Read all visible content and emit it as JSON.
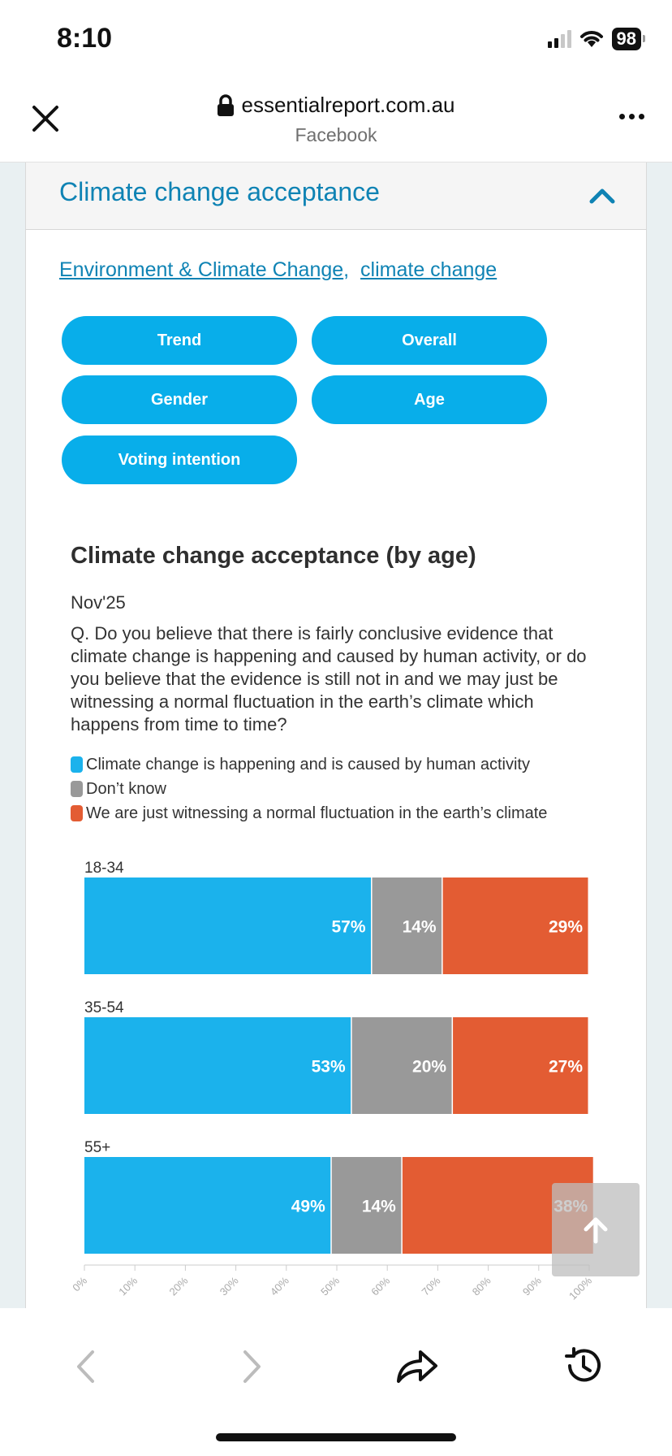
{
  "status": {
    "time": "8:10",
    "battery": "98"
  },
  "browser": {
    "domain": "essentialreport.com.au",
    "source": "Facebook"
  },
  "accordion": {
    "title": "Climate change acceptance"
  },
  "tags": [
    "Environment & Climate Change",
    "climate change"
  ],
  "tag_separator": ",",
  "buttons": {
    "trend": "Trend",
    "overall": "Overall",
    "gender": "Gender",
    "age": "Age",
    "voting": "Voting intention"
  },
  "chart_header": {
    "title": "Climate change acceptance (by age)",
    "date": "Nov'25",
    "question": "Q. Do you believe that there is fairly conclusive evidence that climate change is happening and caused by human activity, or do you believe that the evidence is still not in and we may just be witnessing a normal fluctuation in the earth’s climate which happens from time to time?"
  },
  "chart_data": {
    "type": "bar",
    "orientation": "horizontal",
    "stacked": true,
    "title": "Climate change acceptance (by age)",
    "categories": [
      "18-34",
      "35-54",
      "55+"
    ],
    "series": [
      {
        "name": "Climate change is happening and is caused by human activity",
        "color": "#1bb2ec",
        "values": [
          57,
          53,
          49
        ]
      },
      {
        "name": "Don’t know",
        "color": "#999999",
        "values": [
          14,
          20,
          14
        ]
      },
      {
        "name": "We are just witnessing a normal fluctuation in the earth’s climate",
        "color": "#e35c33",
        "values": [
          29,
          27,
          38
        ]
      }
    ],
    "xlim": [
      0,
      100
    ],
    "xticks": [
      "0%",
      "10%",
      "20%",
      "30%",
      "40%",
      "50%",
      "60%",
      "70%",
      "80%",
      "90%",
      "100%"
    ],
    "value_suffix": "%",
    "legend_position": "top-left"
  }
}
